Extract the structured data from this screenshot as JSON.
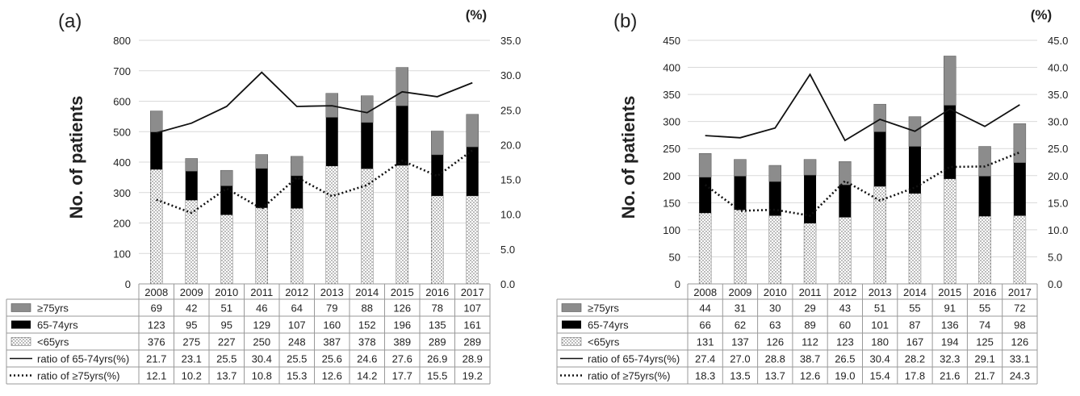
{
  "colors": {
    "above75": "#8c8c8c",
    "age65to74": "#000000",
    "under65_bg": "#ffffff",
    "under65_dots": "#555555",
    "grid": "#d9d9d9",
    "axis": "#999999"
  },
  "chart_data": [
    {
      "type": "bar",
      "panel_label": "(a)",
      "ylabel": "No. of patients",
      "y2label": "(%)",
      "ylim": [
        0,
        800
      ],
      "y_ticks": [
        "0",
        "100",
        "200",
        "300",
        "400",
        "500",
        "600",
        "700",
        "800"
      ],
      "y2lim": [
        0,
        35
      ],
      "y2_ticks": [
        "0.0",
        "5.0",
        "10.0",
        "15.0",
        "20.0",
        "25.0",
        "30.0",
        "35.0"
      ],
      "grid": true,
      "categories": [
        "2008",
        "2009",
        "2010",
        "2011",
        "2012",
        "2013",
        "2014",
        "2015",
        "2016",
        "2017"
      ],
      "series": [
        {
          "name": "≥75yrs",
          "kind": "stacked-bar",
          "values": [
            69,
            42,
            51,
            46,
            64,
            79,
            88,
            126,
            78,
            107
          ]
        },
        {
          "name": "65-74yrs",
          "kind": "stacked-bar",
          "values": [
            123,
            95,
            95,
            129,
            107,
            160,
            152,
            196,
            135,
            161
          ]
        },
        {
          "name": "<65yrs",
          "kind": "stacked-bar",
          "values": [
            376,
            275,
            227,
            250,
            248,
            387,
            378,
            389,
            289,
            289
          ]
        },
        {
          "name": "ratio of 65-74yrs(%)",
          "kind": "line-solid",
          "values": [
            21.7,
            23.1,
            25.5,
            30.4,
            25.5,
            25.6,
            24.6,
            27.6,
            26.9,
            28.9
          ]
        },
        {
          "name": "ratio of ≥75yrs(%)",
          "kind": "line-dotted",
          "values": [
            12.1,
            10.2,
            13.7,
            10.8,
            15.3,
            12.6,
            14.2,
            17.7,
            15.5,
            19.2
          ]
        }
      ]
    },
    {
      "type": "bar",
      "panel_label": "(b)",
      "ylabel": "No. of patients",
      "y2label": "(%)",
      "ylim": [
        0,
        450
      ],
      "y_ticks": [
        "0",
        "50",
        "100",
        "150",
        "200",
        "250",
        "300",
        "350",
        "400",
        "450"
      ],
      "y2lim": [
        0,
        45
      ],
      "y2_ticks": [
        "0.0",
        "5.0",
        "10.0",
        "15.0",
        "20.0",
        "25.0",
        "30.0",
        "35.0",
        "40.0",
        "45.0"
      ],
      "grid": true,
      "categories": [
        "2008",
        "2009",
        "2010",
        "2011",
        "2012",
        "2013",
        "2014",
        "2015",
        "2016",
        "2017"
      ],
      "series": [
        {
          "name": "≥75yrs",
          "kind": "stacked-bar",
          "values": [
            44,
            31,
            30,
            29,
            43,
            51,
            55,
            91,
            55,
            72
          ]
        },
        {
          "name": "65-74yrs",
          "kind": "stacked-bar",
          "values": [
            66,
            62,
            63,
            89,
            60,
            101,
            87,
            136,
            74,
            98
          ]
        },
        {
          "name": "<65yrs",
          "kind": "stacked-bar",
          "values": [
            131,
            137,
            126,
            112,
            123,
            180,
            167,
            194,
            125,
            126
          ]
        },
        {
          "name": "ratio of 65-74yrs(%)",
          "kind": "line-solid",
          "values": [
            27.4,
            27.0,
            28.8,
            38.7,
            26.5,
            30.4,
            28.2,
            32.3,
            29.1,
            33.1
          ]
        },
        {
          "name": "ratio of ≥75yrs(%)",
          "kind": "line-dotted",
          "values": [
            18.3,
            13.5,
            13.7,
            12.6,
            19.0,
            15.4,
            17.8,
            21.6,
            21.7,
            24.3
          ]
        }
      ]
    }
  ]
}
